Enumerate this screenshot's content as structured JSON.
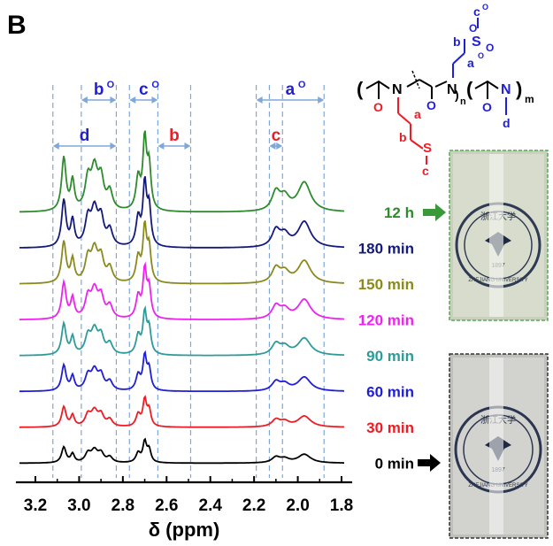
{
  "panel_label": "B",
  "chart_data": {
    "type": "line",
    "xlabel": "δ (ppm)",
    "ylabel": "",
    "xlim": [
      3.2,
      1.8
    ],
    "xaxis_reversed": true,
    "xticks": [
      3.2,
      3.0,
      2.8,
      2.6,
      2.4,
      2.2,
      2.0,
      1.8
    ],
    "xtick_labels": [
      "3.2",
      "3.0",
      "2.8",
      "2.6",
      "2.4",
      "2.2",
      "2.0",
      "1.8"
    ],
    "grid": false,
    "legend": "right of traces",
    "series": [
      {
        "name": "0 min",
        "color": "#000000",
        "scale": 0.12
      },
      {
        "name": "30 min",
        "color": "#ee1c24",
        "scale": 0.22
      },
      {
        "name": "60 min",
        "color": "#1f1fd8",
        "scale": 0.35
      },
      {
        "name": "90 min",
        "color": "#2e9b98",
        "scale": 0.48
      },
      {
        "name": "120 min",
        "color": "#ee22ee",
        "scale": 0.6
      },
      {
        "name": "150 min",
        "color": "#8a8a1e",
        "scale": 0.72
      },
      {
        "name": "180 min",
        "color": "#141a7a",
        "scale": 0.85
      },
      {
        "name": "12 h",
        "color": "#2e8b2e",
        "scale": 1.0
      }
    ],
    "peak_regions": [
      {
        "label": "d",
        "from": 3.12,
        "to": 2.83,
        "color": "#1f1fd8",
        "superscript": ""
      },
      {
        "label": "b",
        "from": 2.99,
        "to": 2.83,
        "color": "#1f1fd8",
        "superscript": "O"
      },
      {
        "label": "c",
        "from": 2.77,
        "to": 2.64,
        "color": "#1f1fd8",
        "superscript": "O"
      },
      {
        "label": "b",
        "from": 2.64,
        "to": 2.49,
        "color": "#ee1c24",
        "superscript": ""
      },
      {
        "label": "c",
        "from": 2.13,
        "to": 2.07,
        "color": "#ee1c24",
        "superscript": ""
      },
      {
        "label": "a",
        "from": 2.19,
        "to": 1.88,
        "color": "#1f1fd8",
        "superscript": "O"
      }
    ]
  },
  "structure_labels": {
    "c_o": "c",
    "b": "b",
    "a_o": "a",
    "a": "a",
    "b_red": "b",
    "c_red": "c",
    "d": "d",
    "N1": "N",
    "N2": "N",
    "N3": "N",
    "S1": "S",
    "S2": "S",
    "O": "O",
    "n": "n",
    "m": "m",
    "o": "O"
  },
  "photos": [
    {
      "caption_text": "ZHEJIANG UNIVERSITY",
      "seal_text": "浙江大学",
      "seal_year": "1897",
      "state": "gel"
    },
    {
      "caption_text": "ZHEJIANG UNIVERSITY",
      "seal_text": "浙江大学",
      "seal_year": "1897",
      "state": "solution"
    }
  ],
  "arrows": [
    {
      "color": "#3a9a3a"
    },
    {
      "color": "#000000"
    }
  ]
}
